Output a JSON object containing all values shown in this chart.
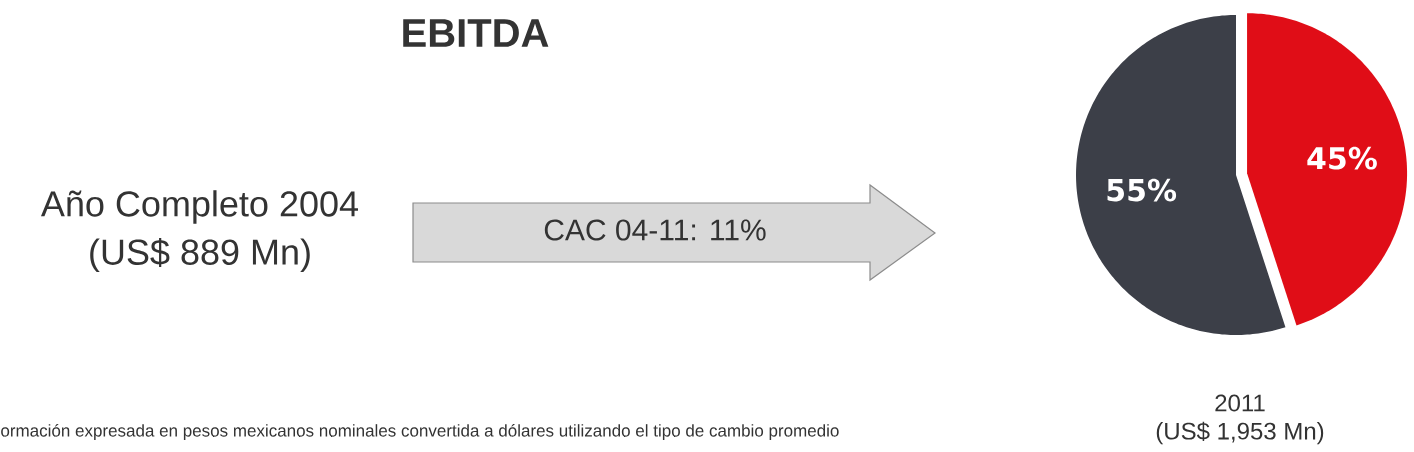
{
  "chart_data": {
    "type": "pie",
    "title": "EBITDA",
    "categories": [
      null,
      null
    ],
    "values": [
      45,
      55
    ],
    "colors": [
      "#e00d17",
      "#3c3f48"
    ],
    "value_labels": [
      "45%",
      "55%"
    ],
    "annotations": [
      "Año Completo 2004",
      "(US$ 889 Mn)",
      "CAC 04-11: 11%",
      "2011",
      "(US$ 1,953 Mn)",
      "ormación expresada en pesos mexicanos nominales convertida a dólares utilizando el tipo de cambio promedio"
    ]
  }
}
